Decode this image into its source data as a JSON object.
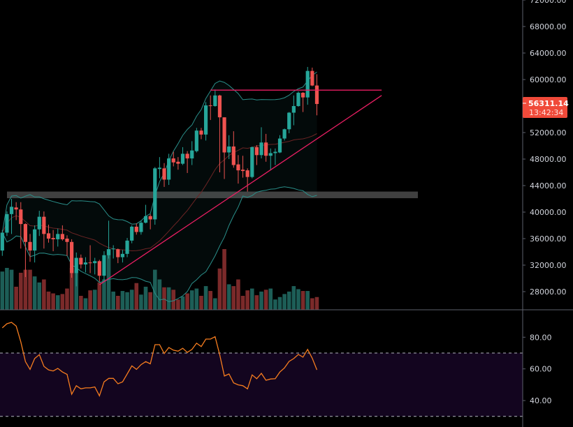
{
  "chart_data": [
    {
      "type": "candlestick",
      "title": "",
      "price_axis": {
        "ticks": [
          "28000.00",
          "32000.00",
          "36000.00",
          "40000.00",
          "44000.00",
          "48000.00",
          "52000.00",
          "56000.00",
          "60000.00",
          "64000.00",
          "68000.00",
          "72000.00"
        ],
        "range": [
          25500,
          72000
        ],
        "side": "right"
      },
      "last_price": {
        "value": "56311.14",
        "countdown": "13:42:34",
        "color": "#f04a3a"
      },
      "colors": {
        "up": "#26a69a",
        "down": "#ef5350",
        "volume_up": "#1d5e57",
        "volume_down": "#7b2a2a",
        "bollinger": "#2a8f8a",
        "basis": "#6b2424",
        "trendline": "#e91e63",
        "zone": "#808080",
        "background": "#000000"
      },
      "candles_ohlc": [
        [
          34200,
          37300,
          33400,
          36900
        ],
        [
          36900,
          40100,
          36400,
          39700
        ],
        [
          39700,
          42000,
          36700,
          40800
        ],
        [
          40700,
          41500,
          38800,
          40400
        ],
        [
          40400,
          41500,
          34500,
          38200
        ],
        [
          38200,
          38300,
          30200,
          35500
        ],
        [
          35500,
          36700,
          32500,
          34200
        ],
        [
          34200,
          38000,
          32400,
          37400
        ],
        [
          37400,
          40200,
          36400,
          39300
        ],
        [
          39300,
          40100,
          34500,
          36700
        ],
        [
          36800,
          38100,
          35400,
          36000
        ],
        [
          36100,
          37300,
          34100,
          35900
        ],
        [
          35900,
          37500,
          34800,
          36700
        ],
        [
          36700,
          38000,
          35700,
          35900
        ],
        [
          36000,
          36500,
          33400,
          35500
        ],
        [
          35500,
          35900,
          30100,
          30800
        ],
        [
          30800,
          33900,
          28800,
          33100
        ],
        [
          33100,
          33600,
          31500,
          32100
        ],
        [
          32100,
          33200,
          30900,
          32400
        ],
        [
          32400,
          35000,
          30800,
          32300
        ],
        [
          32300,
          33100,
          30600,
          32600
        ],
        [
          32600,
          32800,
          29500,
          30400
        ],
        [
          30400,
          34100,
          29500,
          33500
        ],
        [
          33500,
          38700,
          33000,
          34400
        ],
        [
          34400,
          35000,
          33000,
          34500
        ],
        [
          34400,
          34500,
          32300,
          33200
        ],
        [
          33200,
          34300,
          32400,
          33700
        ],
        [
          33700,
          36100,
          33200,
          35700
        ],
        [
          35700,
          38000,
          35300,
          37800
        ],
        [
          37800,
          38300,
          36600,
          37000
        ],
        [
          37000,
          38700,
          36600,
          38400
        ],
        [
          38400,
          41100,
          38300,
          39400
        ],
        [
          39400,
          39700,
          37400,
          38900
        ],
        [
          38900,
          46800,
          38100,
          46600
        ],
        [
          46500,
          48300,
          45100,
          46700
        ],
        [
          46600,
          47400,
          43800,
          44900
        ],
        [
          44900,
          48800,
          44100,
          48100
        ],
        [
          48100,
          49100,
          46900,
          47500
        ],
        [
          47600,
          48300,
          46400,
          47300
        ],
        [
          47300,
          49800,
          47100,
          48800
        ],
        [
          48800,
          49200,
          45900,
          48100
        ],
        [
          48100,
          50700,
          47100,
          49300
        ],
        [
          49200,
          52700,
          49000,
          52300
        ],
        [
          52300,
          52700,
          51000,
          51700
        ],
        [
          51700,
          56600,
          50800,
          56100
        ],
        [
          56100,
          57600,
          53900,
          56000
        ],
        [
          56000,
          58500,
          55900,
          57600
        ],
        [
          57600,
          57700,
          46000,
          54300
        ],
        [
          54300,
          54300,
          45000,
          49000
        ],
        [
          49000,
          51600,
          48000,
          49900
        ],
        [
          49900,
          52200,
          46700,
          47100
        ],
        [
          47200,
          48600,
          44300,
          46300
        ],
        [
          46400,
          48500,
          45200,
          46200
        ],
        [
          46300,
          46600,
          43100,
          45300
        ],
        [
          45300,
          49900,
          45100,
          49800
        ],
        [
          49800,
          50100,
          47100,
          48600
        ],
        [
          48600,
          52800,
          48100,
          50500
        ],
        [
          50500,
          51800,
          47600,
          48500
        ],
        [
          48500,
          49600,
          46300,
          48900
        ],
        [
          48900,
          49600,
          47100,
          49100
        ],
        [
          49000,
          51600,
          48900,
          51100
        ],
        [
          51100,
          52600,
          50800,
          52500
        ],
        [
          52500,
          55100,
          51900,
          55000
        ],
        [
          55000,
          57600,
          53100,
          56000
        ],
        [
          56000,
          58200,
          55900,
          58000
        ],
        [
          58000,
          58100,
          55100,
          57300
        ],
        [
          57300,
          61900,
          56200,
          61300
        ],
        [
          61300,
          61800,
          59000,
          59100
        ],
        [
          59100,
          60800,
          54600,
          56311.14
        ]
      ],
      "volume_relative_percent": [
        63,
        69,
        66,
        38,
        61,
        66,
        66,
        55,
        45,
        50,
        30,
        27,
        24,
        26,
        35,
        69,
        66,
        23,
        19,
        32,
        33,
        45,
        50,
        100,
        30,
        23,
        31,
        29,
        33,
        44,
        25,
        38,
        29,
        66,
        50,
        37,
        37,
        33,
        17,
        22,
        27,
        32,
        35,
        23,
        39,
        31,
        19,
        68,
        100,
        42,
        39,
        50,
        23,
        32,
        35,
        24,
        30,
        33,
        35,
        17,
        21,
        26,
        30,
        39,
        34,
        31,
        31,
        19,
        21
      ],
      "indicators": {
        "bollinger_bands": {
          "period": 20,
          "stddev": 2
        },
        "support_zone": [
          42100,
          43100
        ],
        "horizontal_resistance": {
          "price": 58400,
          "from_candle": 45,
          "to_candle": 82
        },
        "rising_trendline": {
          "from": {
            "candle": 21,
            "price": 29050
          },
          "to": {
            "candle": 82,
            "price": 57600
          }
        }
      }
    },
    {
      "type": "line",
      "title": "",
      "y_axis": {
        "ticks": [
          "40.00",
          "60.00",
          "80.00"
        ],
        "range": [
          27,
          101
        ]
      },
      "bands": {
        "upper": 70,
        "lower": 30,
        "fill": "#13051f",
        "dash_color": "#b2b5be"
      },
      "line_color": "#f57c1f",
      "values": [
        85.9,
        88.5,
        89.4,
        87.0,
        77.0,
        64.6,
        59.7,
        66.5,
        69.0,
        61.6,
        59.4,
        58.7,
        60.3,
        58.0,
        56.5,
        44.0,
        49.4,
        47.4,
        48.0,
        48.0,
        48.6,
        43.0,
        51.8,
        54.0,
        54.0,
        50.6,
        51.8,
        56.8,
        61.9,
        59.7,
        62.7,
        64.6,
        63.2,
        75.3,
        75.3,
        69.7,
        73.5,
        71.8,
        71.2,
        73.0,
        70.4,
        72.3,
        76.2,
        74.1,
        78.8,
        78.8,
        80.3,
        69.0,
        55.5,
        56.8,
        51.2,
        49.9,
        49.4,
        47.4,
        56.2,
        53.8,
        57.2,
        52.8,
        53.6,
        53.8,
        58.0,
        60.6,
        64.7,
        66.5,
        69.1,
        67.4,
        72.3,
        66.8,
        59.4
      ]
    }
  ]
}
